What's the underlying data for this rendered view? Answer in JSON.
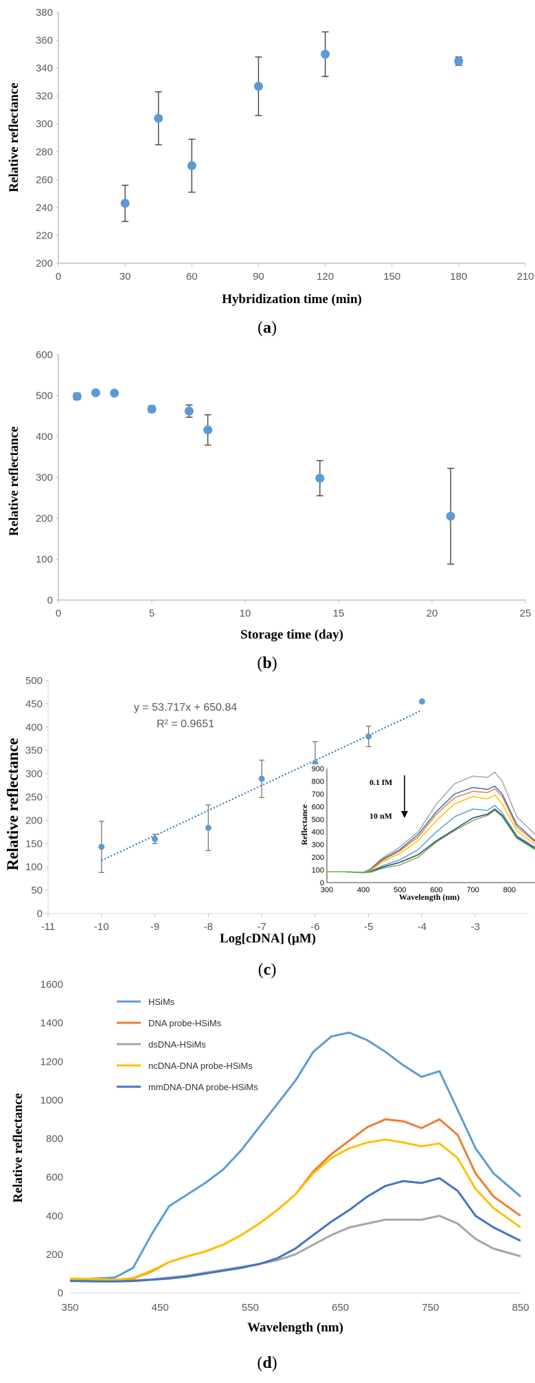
{
  "colors": {
    "marker": "#5b9bd5",
    "errorbar": "#404040",
    "axis": "#bfbfbf",
    "grid": "#d9d9d9",
    "trend": "#2e75b6"
  },
  "panels": {
    "a": "a",
    "b": "b",
    "c": "c",
    "d": "d"
  },
  "chart_data": [
    {
      "id": "a",
      "type": "scatter",
      "xlabel": "Hybridization time (min)",
      "ylabel": "Relative reflectance",
      "xlim": [
        0,
        210
      ],
      "ylim": [
        200,
        380
      ],
      "xticks": [
        0,
        30,
        60,
        90,
        120,
        150,
        180,
        210
      ],
      "yticks": [
        200,
        220,
        240,
        260,
        280,
        300,
        320,
        340,
        360,
        380
      ],
      "points": [
        {
          "x": 30,
          "y": 243,
          "err": 13
        },
        {
          "x": 45,
          "y": 304,
          "err": 19
        },
        {
          "x": 60,
          "y": 270,
          "err": 19
        },
        {
          "x": 90,
          "y": 327,
          "err": 21
        },
        {
          "x": 120,
          "y": 350,
          "err": 16
        },
        {
          "x": 180,
          "y": 345,
          "err": 3
        }
      ]
    },
    {
      "id": "b",
      "type": "scatter",
      "xlabel": "Storage time (day)",
      "ylabel": "Relative reflectance",
      "xlim": [
        0,
        25
      ],
      "ylim": [
        0,
        600
      ],
      "xticks": [
        0,
        5,
        10,
        15,
        20,
        25
      ],
      "yticks": [
        0,
        100,
        200,
        300,
        400,
        500,
        600
      ],
      "points": [
        {
          "x": 1,
          "y": 498,
          "err": 8
        },
        {
          "x": 2,
          "y": 507,
          "err": 4
        },
        {
          "x": 3,
          "y": 506,
          "err": 3
        },
        {
          "x": 5,
          "y": 467,
          "err": 8
        },
        {
          "x": 7,
          "y": 462,
          "err": 15
        },
        {
          "x": 8,
          "y": 416,
          "err": 37
        },
        {
          "x": 14,
          "y": 298,
          "err": 43
        },
        {
          "x": 21,
          "y": 205,
          "err": 117
        }
      ]
    },
    {
      "id": "c",
      "type": "scatter",
      "xlabel": "Log[cDNA] (μM)",
      "ylabel": "Relative reflectance",
      "xlim": [
        -11,
        -2
      ],
      "ylim": [
        0,
        500
      ],
      "xticks": [
        -11,
        -10,
        -9,
        -8,
        -7,
        -6,
        -5,
        -4,
        -3
      ],
      "yticks": [
        0,
        50,
        100,
        150,
        200,
        250,
        300,
        350,
        400,
        450,
        500
      ],
      "points": [
        {
          "x": -10,
          "y": 143,
          "err": 55
        },
        {
          "x": -9,
          "y": 160,
          "err": 10
        },
        {
          "x": -8,
          "y": 184,
          "err": 49
        },
        {
          "x": -7,
          "y": 289,
          "err": 40
        },
        {
          "x": -6,
          "y": 322,
          "err": 47
        },
        {
          "x": -5,
          "y": 380,
          "err": 22
        },
        {
          "x": -4,
          "y": 455,
          "err": 3
        }
      ],
      "trendline": {
        "slope": 53.717,
        "intercept": 650.84,
        "x_from": -10,
        "x_to": -4
      },
      "equation": "y = 53.717x + 650.84",
      "r2": "R² = 0.9651",
      "inset": {
        "type": "line",
        "xlabel": "Wavelength (nm)",
        "ylabel": "Reflectance",
        "xlim": [
          300,
          870
        ],
        "ylim": [
          0,
          900
        ],
        "xticks": [
          300,
          400,
          500,
          600,
          700,
          800
        ],
        "yticks": [
          0,
          100,
          200,
          300,
          400,
          500,
          600,
          700,
          800,
          900
        ],
        "annotation_top": "0.1 fM",
        "annotation_bottom": "10 nM",
        "x": [
          300,
          350,
          400,
          420,
          450,
          500,
          550,
          600,
          650,
          700,
          740,
          760,
          780,
          820,
          870
        ],
        "series": [
          {
            "color": "#a6a6a6",
            "values": [
              85,
              85,
              80,
              110,
              190,
              280,
              400,
              620,
              780,
              840,
              830,
              870,
              800,
              520,
              380
            ]
          },
          {
            "color": "#2e75b6",
            "values": [
              85,
              85,
              80,
              105,
              180,
              260,
              380,
              560,
              700,
              750,
              735,
              760,
              700,
              460,
              330
            ]
          },
          {
            "color": "#ed7d31",
            "values": [
              85,
              85,
              80,
              100,
              170,
              250,
              360,
              540,
              670,
              720,
              710,
              740,
              680,
              440,
              320
            ]
          },
          {
            "color": "#ffc000",
            "values": [
              85,
              85,
              80,
              95,
              160,
              230,
              330,
              490,
              620,
              680,
              660,
              690,
              620,
              410,
              300
            ]
          },
          {
            "color": "#5b9bd5",
            "values": [
              85,
              85,
              80,
              90,
              130,
              180,
              260,
              400,
              520,
              580,
              570,
              610,
              550,
              370,
              280
            ]
          },
          {
            "color": "#264478",
            "values": [
              85,
              85,
              78,
              85,
              120,
              160,
              220,
              330,
              420,
              510,
              540,
              580,
              530,
              360,
              270
            ]
          },
          {
            "color": "#70ad47",
            "values": [
              85,
              85,
              78,
              82,
              110,
              140,
              200,
              320,
              410,
              490,
              530,
              570,
              520,
              350,
              260
            ]
          }
        ]
      }
    },
    {
      "id": "d",
      "type": "line",
      "xlabel": "Wavelength (nm)",
      "ylabel": "Relative reflectance",
      "xlim": [
        350,
        850
      ],
      "ylim": [
        0,
        1600
      ],
      "xticks": [
        350,
        450,
        550,
        650,
        750,
        850
      ],
      "yticks": [
        0,
        200,
        400,
        600,
        800,
        1000,
        1200,
        1400,
        1600
      ],
      "x": [
        350,
        380,
        400,
        420,
        440,
        460,
        480,
        500,
        520,
        540,
        560,
        580,
        600,
        620,
        640,
        660,
        680,
        700,
        720,
        740,
        760,
        780,
        800,
        820,
        850
      ],
      "series": [
        {
          "name": "HSiMs",
          "color": "#5b9bd5",
          "values": [
            70,
            75,
            80,
            130,
            300,
            450,
            510,
            570,
            640,
            740,
            860,
            980,
            1100,
            1250,
            1330,
            1350,
            1310,
            1250,
            1180,
            1120,
            1150,
            950,
            750,
            620,
            500
          ]
        },
        {
          "name": "DNA probe-HSiMs",
          "color": "#ed7d31",
          "values": [
            65,
            62,
            65,
            75,
            110,
            160,
            190,
            215,
            250,
            300,
            360,
            430,
            510,
            630,
            720,
            790,
            860,
            900,
            890,
            855,
            900,
            820,
            620,
            500,
            400
          ]
        },
        {
          "name": "dsDNA-HSiMs",
          "color": "#a5a5a5",
          "values": [
            65,
            62,
            62,
            65,
            70,
            80,
            90,
            105,
            120,
            135,
            150,
            170,
            200,
            250,
            300,
            340,
            360,
            380,
            380,
            380,
            400,
            360,
            280,
            230,
            190
          ]
        },
        {
          "name": "ncDNA-DNA probe-HSiMs",
          "color": "#ffc000",
          "values": [
            75,
            72,
            68,
            78,
            115,
            160,
            190,
            215,
            250,
            300,
            360,
            430,
            510,
            620,
            700,
            750,
            780,
            795,
            780,
            760,
            775,
            700,
            540,
            440,
            340
          ]
        },
        {
          "name": "mmDNA-DNA probe-HSiMs",
          "color": "#4472c4",
          "values": [
            62,
            60,
            60,
            62,
            68,
            75,
            85,
            100,
            115,
            130,
            150,
            180,
            230,
            300,
            370,
            430,
            500,
            555,
            580,
            570,
            595,
            530,
            400,
            340,
            270
          ]
        }
      ]
    }
  ]
}
